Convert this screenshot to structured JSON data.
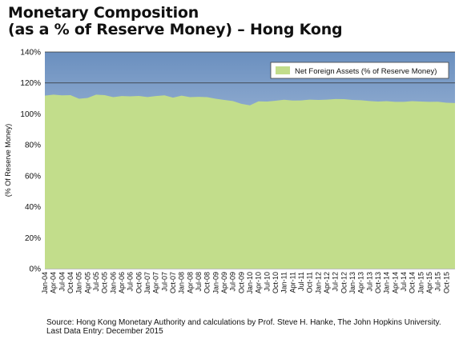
{
  "title_line1": "Monetary Composition",
  "title_line2": "(as a % of Reserve Money) – Hong Kong",
  "source_line1": "Source: Hong Kong Monetary Authority and calculations by Prof. Steve H. Hanke, The John Hopkins University.",
  "source_line2": "Last Data Entry: December 2015",
  "colors": {
    "area_fill": "#c2dd8b",
    "bg_top": "#6a8fbf",
    "bg_bottom": "#e9eff7",
    "grid": "#333333"
  },
  "chart_data": {
    "type": "area",
    "title": "Monetary Composition (as a % of Reserve Money) – Hong Kong",
    "xlabel": "",
    "ylabel": "(% Of Reserve Money)",
    "ylim": [
      0,
      140
    ],
    "yticks": [
      0,
      20,
      40,
      60,
      80,
      100,
      120,
      140
    ],
    "ytick_labels": [
      "0%",
      "20%",
      "40%",
      "60%",
      "80%",
      "100%",
      "120%",
      "140%"
    ],
    "grid": true,
    "legend_position": "top-right",
    "series": [
      {
        "name": "Net Foreign Assets (% of Reserve Money)",
        "x": [
          "Jan-04",
          "Apr-04",
          "Jul-04",
          "Oct-04",
          "Jan-05",
          "Apr-05",
          "Jul-05",
          "Oct-05",
          "Jan-06",
          "Apr-06",
          "Jul-06",
          "Oct-06",
          "Jan-07",
          "Apr-07",
          "Jul-07",
          "Oct-07",
          "Jan-08",
          "Apr-08",
          "Jul-08",
          "Oct-08",
          "Jan-09",
          "Apr-09",
          "Jul-09",
          "Oct-09",
          "Jan-10",
          "Apr-10",
          "Jul-10",
          "Oct-10",
          "Jan-11",
          "Apr-11",
          "Jul-11",
          "Oct-11",
          "Jan-12",
          "Apr-12",
          "Jul-12",
          "Oct-12",
          "Jan-13",
          "Apr-13",
          "Jul-13",
          "Oct-13",
          "Jan-14",
          "Apr-14",
          "Jul-14",
          "Oct-14",
          "Jan-15",
          "Apr-15",
          "Jul-15",
          "Oct-15",
          "Dec-15"
        ],
        "values": [
          111.8,
          112.1,
          112.0,
          112.1,
          109.5,
          110.3,
          112.4,
          111.8,
          110.8,
          111.5,
          111.0,
          111.6,
          110.9,
          111.2,
          112.0,
          110.5,
          111.5,
          110.8,
          111.0,
          110.5,
          109.8,
          109.0,
          108.0,
          106.5,
          105.5,
          107.8,
          108.0,
          108.5,
          108.8,
          108.6,
          108.7,
          108.9,
          109.0,
          109.2,
          109.3,
          109.5,
          109.0,
          108.5,
          108.3,
          108.0,
          107.9,
          107.8,
          107.8,
          107.9,
          108.0,
          107.8,
          107.5,
          107.2,
          107.0
        ]
      }
    ],
    "x_tick_labels": [
      "Jan-04",
      "Apr-04",
      "Jul-04",
      "Oct-04",
      "Jan-05",
      "Apr-05",
      "Jul-05",
      "Oct-05",
      "Jan-06",
      "Apr-06",
      "Jul-06",
      "Oct-06",
      "Jan-07",
      "Apr-07",
      "Jul-07",
      "Oct-07",
      "Jan-08",
      "Apr-08",
      "Jul-08",
      "Oct-08",
      "Jan-09",
      "Apr-09",
      "Jul-09",
      "Oct-09",
      "Jan-10",
      "Apr-10",
      "Jul-10",
      "Oct-10",
      "Jan-11",
      "Apr-11",
      "Jul-11",
      "Oct-11",
      "Jan-12",
      "Apr-12",
      "Jul-12",
      "Oct-12",
      "Jan-13",
      "Apr-13",
      "Jul-13",
      "Oct-13",
      "Jan-14",
      "Apr-14",
      "Jul-14",
      "Oct-14",
      "Jan-15",
      "Apr-15",
      "Jul-15",
      "Oct-15"
    ]
  }
}
